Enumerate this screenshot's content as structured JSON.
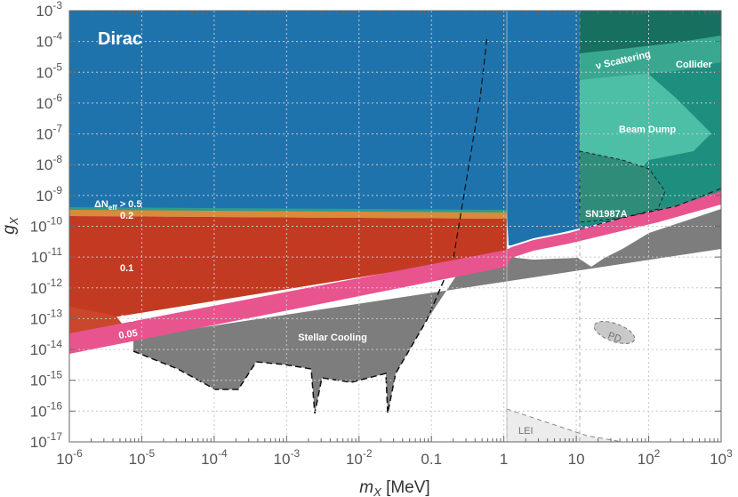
{
  "chart_data": {
    "type": "area",
    "title": "",
    "panel_label": "Dirac",
    "xlabel": "m_X [MeV]",
    "ylabel": "g_X",
    "xscale": "log",
    "yscale": "log",
    "xlim": [
      1e-06,
      1000
    ],
    "ylim": [
      1e-17,
      0.001
    ],
    "grid": true,
    "x_ticks": [
      "10^-6",
      "10^-5",
      "10^-4",
      "10^-3",
      "10^-2",
      "0.1",
      "1",
      "10",
      "10^2",
      "10^3"
    ],
    "y_ticks": [
      "10^-17",
      "10^-16",
      "10^-15",
      "10^-14",
      "10^-13",
      "10^-12",
      "10^-11",
      "10^-10",
      "10^-9",
      "10^-8",
      "10^-7",
      "10^-6",
      "10^-5",
      "10^-4",
      "10^-3"
    ],
    "regions": [
      {
        "name": "ΔNeff > 0.5",
        "color": "#1f77b4",
        "boundary_x": [
          1e-06,
          1,
          1.1,
          2,
          5,
          10,
          1000
        ],
        "boundary_y": [
          4e-10,
          3e-10,
          3e-11,
          6e-11,
          1e-10,
          2e-10,
          5e-10
        ]
      },
      {
        "name": "0.2",
        "color": "#e07b39",
        "boundary_at_1e-6": 3e-10
      },
      {
        "name": "0.1",
        "color": "#c0392b",
        "boundary_at_1e-6": 2e-13
      },
      {
        "name": "0.05",
        "color": "#e8548e",
        "boundary_x": [
          1e-06,
          1
        ],
        "boundary_y": [
          1e-14,
          1e-11
        ]
      },
      {
        "name": "Stellar Cooling",
        "color": "#7a7a7a",
        "boundary_x": [
          1e-05,
          0.0001,
          0.0003,
          0.001,
          0.0025,
          0.01,
          0.024,
          0.1,
          1
        ],
        "boundary_y": [
          1e-14,
          1e-15,
          5e-15,
          3e-15,
          1.2e-16,
          3e-15,
          1.2e-16,
          1e-13,
          1e-10
        ]
      },
      {
        "name": "SN1987A",
        "color": "#2a8a76"
      },
      {
        "name": "Beam Dump",
        "color": "#45b8a0"
      },
      {
        "name": "ν Scattering",
        "color": "#45b8a0"
      },
      {
        "name": "Collider",
        "color": "#1f7a68"
      },
      {
        "name": "PD",
        "color": "#cfcfcf",
        "center": [
          15,
          2e-14
        ]
      },
      {
        "name": "LEI",
        "color": "#eaeaea",
        "x_range": [
          1,
          1000
        ],
        "y_range": [
          1e-17,
          1.5e-16
        ]
      }
    ],
    "labels": {
      "dneff": "ΔN",
      "dneff_sub": "eff",
      "dneff_rest": " > 0.5",
      "l02": "0.2",
      "l01a": "0.1",
      "l01b": "0.1",
      "l005": "0.05",
      "stellar": "Stellar Cooling",
      "collider": "Collider",
      "nu": "ν Scattering",
      "beam": "Beam Dump",
      "sn": "SN1987A",
      "pd": "PD",
      "lei": "LEI"
    }
  }
}
